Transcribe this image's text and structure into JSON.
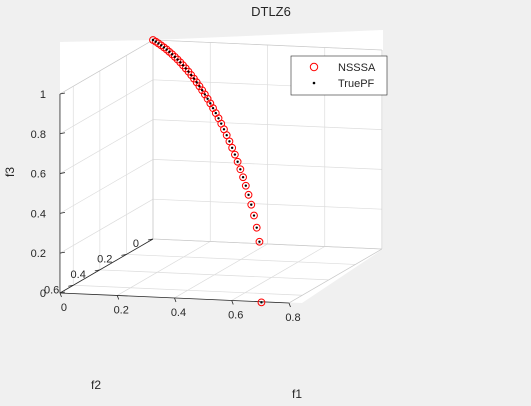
{
  "chart_data": {
    "type": "scatter",
    "dimensions": "3d",
    "title": "DTLZ6",
    "xlabel": "f1",
    "ylabel": "f2",
    "zlabel": "f3",
    "xlim": [
      0,
      0.8
    ],
    "ylim": [
      0,
      0.7
    ],
    "zlim": [
      0,
      1
    ],
    "xticks": [
      "0",
      "0.2",
      "0.4",
      "0.6",
      "0.8"
    ],
    "yticks": [
      "0",
      "0.2",
      "0.4",
      "0.6"
    ],
    "zticks": [
      "0",
      "0.2",
      "0.4",
      "0.6",
      "0.8",
      "1"
    ],
    "grid": true,
    "legend_position": "top-right",
    "legend": [
      "NSSSA",
      "TruePF"
    ],
    "series": [
      {
        "name": "NSSSA",
        "marker": "open-circle",
        "color": "#ff0000",
        "x": [
          0.0,
          0.0178,
          0.0356,
          0.0534,
          0.0712,
          0.089,
          0.1068,
          0.1246,
          0.1424,
          0.1602,
          0.178,
          0.1958,
          0.2136,
          0.2314,
          0.2492,
          0.267,
          0.2848,
          0.3026,
          0.3204,
          0.3382,
          0.356,
          0.3738,
          0.3916,
          0.4094,
          0.4272,
          0.445,
          0.4628,
          0.4806,
          0.4984,
          0.5162,
          0.534,
          0.5518,
          0.5696,
          0.5874,
          0.6052,
          0.623,
          0.6408,
          0.6586,
          0.6764,
          0.6942,
          0.7071
        ],
        "y": [
          0.0,
          0.0178,
          0.0356,
          0.0534,
          0.0712,
          0.089,
          0.1068,
          0.1246,
          0.1424,
          0.1602,
          0.178,
          0.1958,
          0.2136,
          0.2314,
          0.2492,
          0.267,
          0.2848,
          0.3026,
          0.3204,
          0.3382,
          0.356,
          0.3738,
          0.3916,
          0.4094,
          0.4272,
          0.445,
          0.4628,
          0.4806,
          0.4984,
          0.5162,
          0.534,
          0.5518,
          0.5696,
          0.5874,
          0.6052,
          0.623,
          0.6408,
          0.6586,
          0.6764,
          0.6942,
          0.7071
        ],
        "z": [
          1.0,
          0.9997,
          0.9987,
          0.9971,
          0.9949,
          0.9921,
          0.9885,
          0.9843,
          0.9795,
          0.974,
          0.9678,
          0.9609,
          0.9533,
          0.945,
          0.9359,
          0.9261,
          0.9155,
          0.9041,
          0.8919,
          0.8788,
          0.8648,
          0.8498,
          0.8339,
          0.817,
          0.799,
          0.7799,
          0.7596,
          0.738,
          0.715,
          0.6906,
          0.6645,
          0.6367,
          0.6069,
          0.5749,
          0.5402,
          0.5025,
          0.4609,
          0.4145,
          0.3615,
          0.2987,
          0.0
        ]
      },
      {
        "name": "TruePF",
        "marker": "dot",
        "color": "#000000",
        "x": [
          0.0,
          0.0178,
          0.0356,
          0.0534,
          0.0712,
          0.089,
          0.1068,
          0.1246,
          0.1424,
          0.1602,
          0.178,
          0.1958,
          0.2136,
          0.2314,
          0.2492,
          0.267,
          0.2848,
          0.3026,
          0.3204,
          0.3382,
          0.356,
          0.3738,
          0.3916,
          0.4094,
          0.4272,
          0.445,
          0.4628,
          0.4806,
          0.4984,
          0.5162,
          0.534,
          0.5518,
          0.5696,
          0.5874,
          0.6052,
          0.623,
          0.6408,
          0.6586,
          0.6764,
          0.6942,
          0.7071
        ],
        "y": [
          0.0,
          0.0178,
          0.0356,
          0.0534,
          0.0712,
          0.089,
          0.1068,
          0.1246,
          0.1424,
          0.1602,
          0.178,
          0.1958,
          0.2136,
          0.2314,
          0.2492,
          0.267,
          0.2848,
          0.3026,
          0.3204,
          0.3382,
          0.356,
          0.3738,
          0.3916,
          0.4094,
          0.4272,
          0.445,
          0.4628,
          0.4806,
          0.4984,
          0.5162,
          0.534,
          0.5518,
          0.5696,
          0.5874,
          0.6052,
          0.623,
          0.6408,
          0.6586,
          0.6764,
          0.6942,
          0.7071
        ],
        "z": [
          1.0,
          0.9997,
          0.9987,
          0.9971,
          0.9949,
          0.9921,
          0.9885,
          0.9843,
          0.9795,
          0.974,
          0.9678,
          0.9609,
          0.9533,
          0.945,
          0.9359,
          0.9261,
          0.9155,
          0.9041,
          0.8919,
          0.8788,
          0.8648,
          0.8498,
          0.8339,
          0.817,
          0.799,
          0.7799,
          0.7596,
          0.738,
          0.715,
          0.6906,
          0.6645,
          0.6367,
          0.6069,
          0.5749,
          0.5402,
          0.5025,
          0.4609,
          0.4145,
          0.3615,
          0.2987,
          0.0
        ]
      }
    ]
  }
}
